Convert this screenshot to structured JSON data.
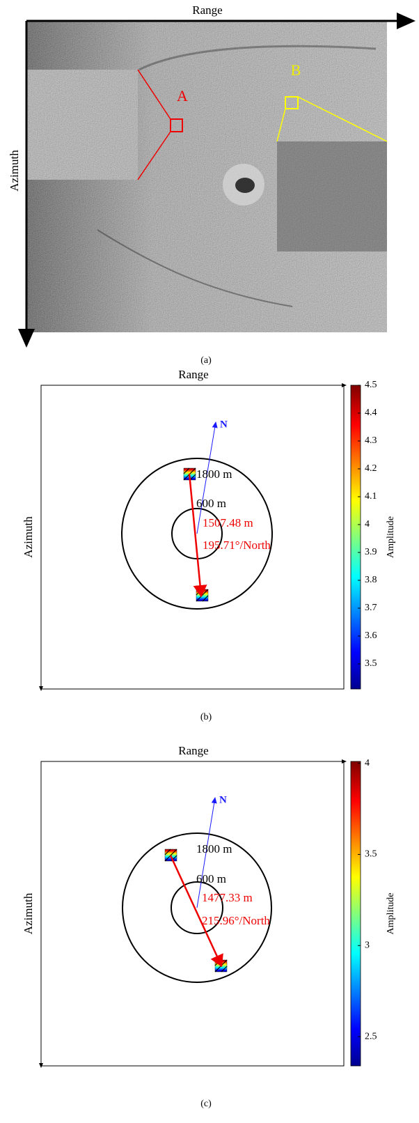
{
  "panels": [
    {
      "label": "(a)",
      "x_axis": "Range",
      "y_axis": "Azimuth",
      "insets": [
        "A",
        "B"
      ]
    },
    {
      "label": "(b)",
      "x_axis": "Range",
      "y_axis": "Azimuth",
      "north": "N",
      "rings": [
        "1800 m",
        "600 m"
      ],
      "distance": "1507.48 m",
      "direction": "195.71°/North",
      "colorbar": {
        "label": "Amplitude",
        "lim": [
          3.41,
          4.5
        ],
        "ticks": [
          3.5,
          3.6,
          3.7,
          3.8,
          3.9,
          4,
          4.1,
          4.2,
          4.3,
          4.4,
          4.5
        ]
      }
    },
    {
      "label": "(c)",
      "x_axis": "Range",
      "y_axis": "Azimuth",
      "north": "N",
      "rings": [
        "1800 m",
        "600 m"
      ],
      "distance": "1477.33 m",
      "direction": "215.96°/North",
      "colorbar": {
        "label": "Amplitude",
        "lim": [
          2.34,
          4.01
        ],
        "ticks": [
          2.5,
          3,
          3.5,
          4
        ]
      }
    }
  ]
}
